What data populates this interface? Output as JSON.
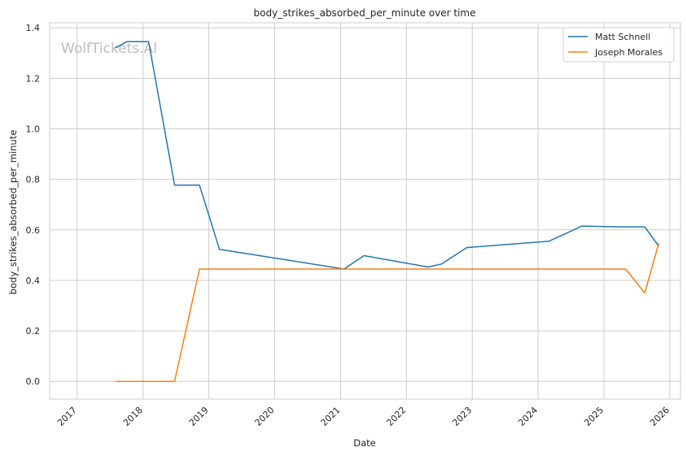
{
  "chart_data": {
    "type": "line",
    "title": "body_strikes_absorbed_per_minute over time",
    "xlabel": "Date",
    "ylabel": "body_strikes_absorbed_per_minute",
    "watermark": "WolfTickets.AI",
    "x_ticks": [
      "2017",
      "2018",
      "2019",
      "2020",
      "2021",
      "2022",
      "2023",
      "2024",
      "2025",
      "2026"
    ],
    "y_ticks": [
      "0.0",
      "0.2",
      "0.4",
      "0.6",
      "0.8",
      "1.0",
      "1.2",
      "1.4"
    ],
    "xlim": [
      "2016-08-01",
      "2026-03-01"
    ],
    "ylim": [
      -0.07,
      1.42
    ],
    "grid": true,
    "legend_position": "top-right",
    "series": [
      {
        "name": "Matt Schnell",
        "color": "#1f77b4",
        "points": [
          [
            "2017-08-01",
            1.32
          ],
          [
            "2017-10-01",
            1.345
          ],
          [
            "2018-02-01",
            1.345
          ],
          [
            "2018-06-25",
            0.777
          ],
          [
            "2018-11-10",
            0.777
          ],
          [
            "2019-03-01",
            0.523
          ],
          [
            "2021-01-20",
            0.445
          ],
          [
            "2021-05-10",
            0.498
          ],
          [
            "2022-05-01",
            0.453
          ],
          [
            "2022-07-15",
            0.465
          ],
          [
            "2022-12-01",
            0.53
          ],
          [
            "2024-03-01",
            0.555
          ],
          [
            "2024-09-01",
            0.615
          ],
          [
            "2025-04-01",
            0.612
          ],
          [
            "2025-08-15",
            0.612
          ],
          [
            "2025-11-01",
            0.535
          ]
        ]
      },
      {
        "name": "Joseph Morales",
        "color": "#ff7f0e",
        "points": [
          [
            "2017-08-01",
            0.0
          ],
          [
            "2018-06-25",
            0.0
          ],
          [
            "2018-11-10",
            0.445
          ],
          [
            "2025-05-01",
            0.445
          ],
          [
            "2025-08-15",
            0.35
          ],
          [
            "2025-11-01",
            0.548
          ]
        ]
      }
    ]
  }
}
